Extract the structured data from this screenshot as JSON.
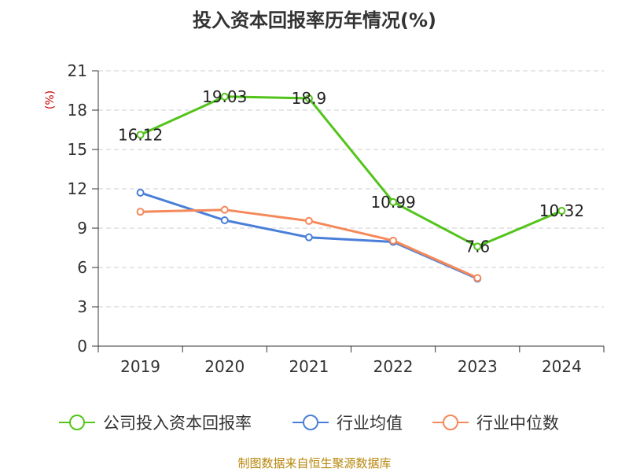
{
  "chart_data": {
    "type": "line",
    "title": "投入资本回报率历年情况(%)",
    "ylabel": "(%)",
    "xlabel": "",
    "categories": [
      "2019",
      "2020",
      "2021",
      "2022",
      "2023",
      "2024"
    ],
    "ylim": [
      0,
      21
    ],
    "yticks": [
      0,
      3,
      6,
      9,
      12,
      15,
      18,
      21
    ],
    "grid": true,
    "legend_position": "bottom",
    "series": [
      {
        "name": "公司投入资本回报率",
        "color": "#52c41a",
        "values": [
          16.12,
          19.03,
          18.9,
          10.99,
          7.6,
          10.32
        ],
        "labels": [
          "16.12",
          "19.03",
          "18.9",
          "10.99",
          "7.6",
          "10.32"
        ],
        "show_labels": true
      },
      {
        "name": "行业均值",
        "color": "#4a7fd9",
        "values": [
          11.7,
          9.6,
          8.3,
          7.95,
          5.15,
          null
        ],
        "show_labels": false
      },
      {
        "name": "行业中位数",
        "color": "#f5895a",
        "values": [
          10.25,
          10.4,
          9.55,
          8.05,
          5.2,
          null
        ],
        "show_labels": false
      }
    ]
  },
  "footer": {
    "source": "制图数据来自恒生聚源数据库"
  }
}
